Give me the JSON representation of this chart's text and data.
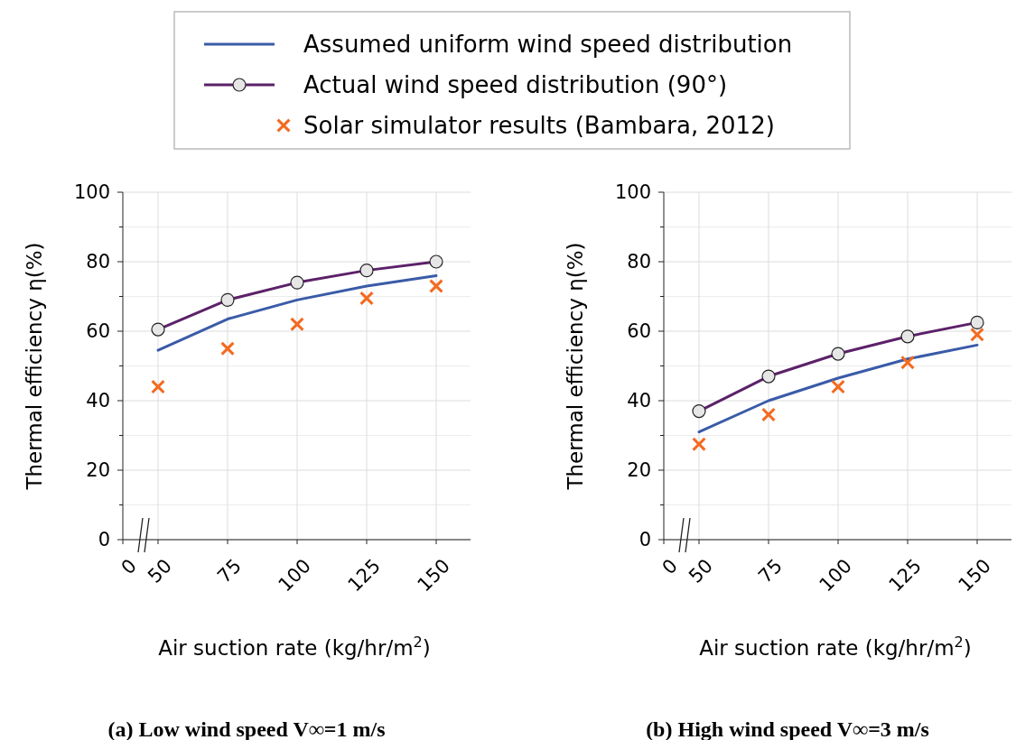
{
  "chart_data": [
    {
      "type": "line",
      "title": "(a) Low wind speed V∞=1 m/s",
      "xlabel": "Air suction rate (kg/hr/m$^{2}$)",
      "ylabel": "Thermal efficiency η(%)",
      "categories": [
        "0",
        "50",
        "75",
        "100",
        "125",
        "150"
      ],
      "ylim": [
        0,
        100
      ],
      "yticks": [
        0,
        20,
        40,
        60,
        80,
        100
      ],
      "grid": true,
      "legend": "top",
      "series": [
        {
          "name": "Assumed uniform wind speed distribution",
          "color": "#3a5ba8",
          "marker": "none",
          "values": [
            null,
            54.5,
            63.5,
            69,
            73,
            76
          ]
        },
        {
          "name": "Actual wind speed distribution (90°)",
          "color": "#5c2169",
          "marker": "circle",
          "values": [
            null,
            60.5,
            69,
            74,
            77.5,
            80
          ]
        },
        {
          "name": "Solar simulator results (Bambara, 2012)",
          "type": "scatter",
          "color": "#f26b21",
          "marker": "cross",
          "values": [
            null,
            44,
            55,
            62,
            69.5,
            73
          ]
        }
      ]
    },
    {
      "type": "line",
      "title": "(b) High wind speed V∞=3 m/s",
      "xlabel": "Air suction rate (kg/hr/m$^{2}$)",
      "ylabel": "Thermal efficiency η(%)",
      "categories": [
        "0",
        "50",
        "75",
        "100",
        "125",
        "150"
      ],
      "ylim": [
        0,
        100
      ],
      "yticks": [
        0,
        20,
        40,
        60,
        80,
        100
      ],
      "grid": true,
      "series": [
        {
          "color": "#3a5ba8",
          "marker": "none",
          "values": [
            null,
            31,
            40,
            46.5,
            52,
            56
          ]
        },
        {
          "color": "#5c2169",
          "marker": "circle",
          "values": [
            null,
            37,
            47,
            53.5,
            58.5,
            62.5
          ]
        },
        {
          "type": "scatter",
          "color": "#f26b21",
          "marker": "cross",
          "values": [
            null,
            27.5,
            36,
            44,
            51,
            59
          ]
        }
      ]
    }
  ]
}
